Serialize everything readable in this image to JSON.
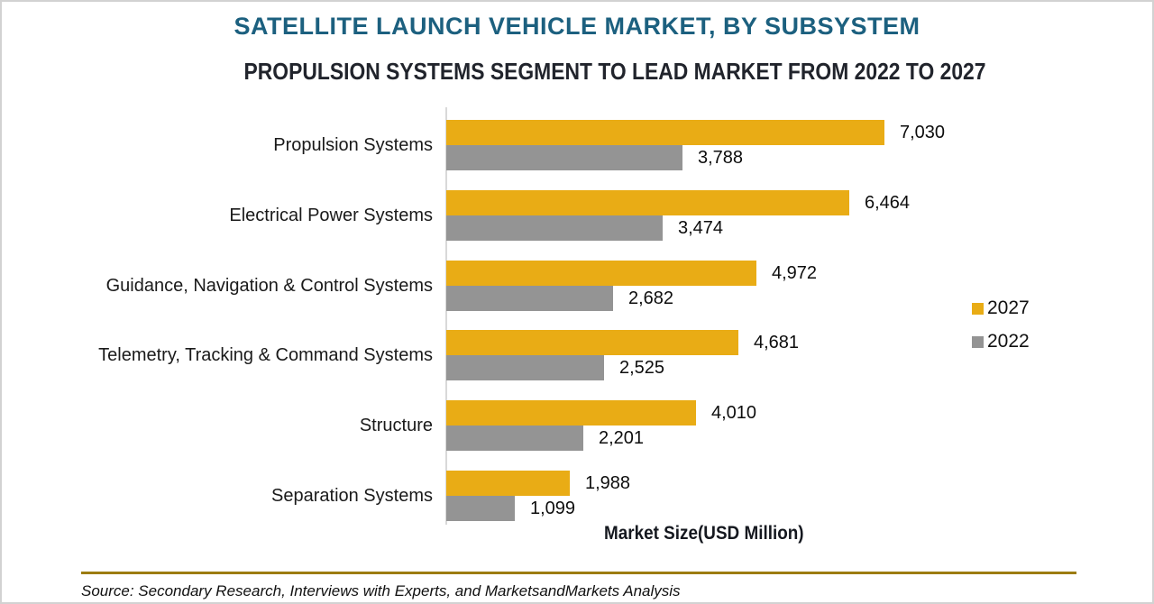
{
  "figure": {
    "title": "SATELLITE LAUNCH VEHICLE MARKET, BY SUBSYSTEM",
    "subtitle": "PROPULSION SYSTEMS SEGMENT TO LEAD MARKET FROM 2022 TO 2027",
    "source_note": "Source: Secondary Research, Interviews with Experts, and MarketsandMarkets Analysis"
  },
  "colors": {
    "title_teal": "#1c607f",
    "subtitle_dark": "#21242c",
    "bar_2027_gold": "#e9ac15",
    "bar_2022_gray": "#949494",
    "axis_gray": "#d9d9d9",
    "divider_gold": "#9c7c10"
  },
  "chart_data": {
    "type": "bar",
    "orientation": "horizontal",
    "title": "SATELLITE LAUNCH VEHICLE MARKET, BY SUBSYSTEM",
    "subtitle": "PROPULSION SYSTEMS SEGMENT TO LEAD MARKET FROM 2022 TO 2027",
    "xlabel": "Market Size(USD Million)",
    "xlim": [
      0,
      7030
    ],
    "grid": false,
    "legend_position": "right",
    "categories": [
      "Propulsion Systems",
      "Electrical Power Systems",
      "Guidance, Navigation & Control Systems",
      "Telemetry, Tracking & Command Systems",
      "Structure",
      "Separation Systems"
    ],
    "series": [
      {
        "name": "2027",
        "color": "#e9ac15",
        "values": [
          7030,
          6464,
          4972,
          4681,
          4010,
          1988
        ],
        "labels": [
          "7,030",
          "6,464",
          "4,972",
          "4,681",
          "4,010",
          "1,988"
        ]
      },
      {
        "name": "2022",
        "color": "#949494",
        "values": [
          3788,
          3474,
          2682,
          2525,
          2201,
          1099
        ],
        "labels": [
          "3,788",
          "3,474",
          "2,682",
          "2,525",
          "2,201",
          "1,099"
        ]
      }
    ]
  }
}
